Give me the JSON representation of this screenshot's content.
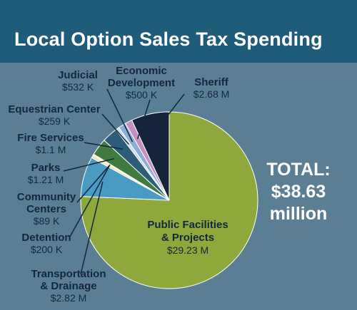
{
  "title": "Local Option Sales Tax Spending",
  "total": [
    "TOTAL:",
    "$38.63",
    "million"
  ],
  "chart_data": {
    "type": "pie",
    "title": "Local Option Sales Tax Spending",
    "unit": "USD",
    "slices": [
      {
        "label": "Public Facilities & Projects",
        "value": 29230000,
        "display": "$29.23 M",
        "color": "#8fa83b"
      },
      {
        "label": "Transportation & Drainage",
        "value": 2820000,
        "display": "$2.82 M",
        "color": "#4a9bc4"
      },
      {
        "label": "Detention",
        "value": 200000,
        "display": "$200 K",
        "color": "#f0e6a8"
      },
      {
        "label": "Community Centers",
        "value": 89000,
        "display": "$89 K",
        "color": "#e8e2c4"
      },
      {
        "label": "Parks",
        "value": 1210000,
        "display": "$1.21 M",
        "color": "#3f7a3e"
      },
      {
        "label": "Fire Services",
        "value": 1100000,
        "display": "$1.1 M",
        "color": "#2c5e7c"
      },
      {
        "label": "Equestrian Center",
        "value": 259000,
        "display": "$259 K",
        "color": "#c4e0e8"
      },
      {
        "label": "Judicial",
        "value": 532000,
        "display": "$532 K",
        "color": "#8aaed8"
      },
      {
        "label": "Economic Development",
        "value": 500000,
        "display": "$500 K",
        "color": "#c88ec2"
      },
      {
        "label": "Sheriff",
        "value": 2680000,
        "display": "$2.68 M",
        "color": "#15243a"
      }
    ],
    "total_display": "$38.63 million"
  },
  "labels": {
    "sheriff": {
      "name": "Sheriff",
      "value": "$2.68 M"
    },
    "econ": {
      "name1": "Economic",
      "name2": "Development",
      "value": "$500 K"
    },
    "judicial": {
      "name": "Judicial",
      "value": "$532 K"
    },
    "equestrian": {
      "name": "Equestrian Center",
      "value": "$259 K"
    },
    "fire": {
      "name": "Fire Services",
      "value": "$1.1 M"
    },
    "parks": {
      "name": "Parks",
      "value": "$1.21 M"
    },
    "community": {
      "name1": "Community",
      "name2": "Centers",
      "value": "$89 K"
    },
    "detention": {
      "name": "Detention",
      "value": "$200 K"
    },
    "transport": {
      "name1": "Transportation",
      "name2": "& Drainage",
      "value": "$2.82 M"
    },
    "public": {
      "name1": "Public Facilities",
      "name2": "& Projects",
      "value": "$29.23 M"
    }
  }
}
